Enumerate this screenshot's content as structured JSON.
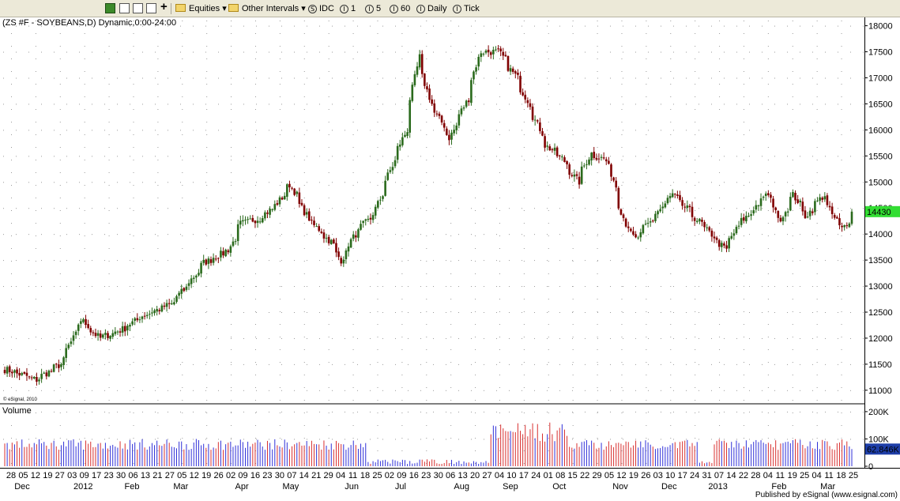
{
  "toolbar": {
    "equities_label": "Equities",
    "other_intervals_label": "Other Intervals",
    "idc_label": "IDC",
    "interval_1": "1",
    "interval_5": "5",
    "interval_60": "60",
    "daily_label": "Daily",
    "tick_label": "Tick",
    "icons": [
      "chart-grid-icon",
      "chart-list-icon",
      "page-icon",
      "copy-icon",
      "plus-icon"
    ]
  },
  "chart_title": "(ZS #F - SOYBEANS,D) Dynamic,0:00-24:00",
  "watermark": "© eSignal, 2010",
  "published": "Published by eSignal (www.esignal.com)",
  "volume_label": "Volume",
  "colors": {
    "up": "#2a6a1c",
    "down": "#800000",
    "vol_up": "#3030d8",
    "vol_down": "#d83030",
    "last_price_bg": "#33dd33",
    "last_volume_bg": "#1e3ea8",
    "grid_dot": "#9a9a9a",
    "volume_title": "#1a1acc"
  },
  "chart_data": {
    "type": "candlestick",
    "price_axis": {
      "range": [
        1080,
        1810
      ],
      "ticks": [
        1100,
        1150,
        1200,
        1250,
        1300,
        1350,
        1400,
        1450,
        1500,
        1550,
        1600,
        1650,
        1700,
        1750,
        1800
      ],
      "tick_labels": [
        "11000",
        "11500",
        "12000",
        "12500",
        "13000",
        "13500",
        "14000",
        "14500",
        "15000",
        "15500",
        "16000",
        "16500",
        "17000",
        "17500",
        "18000"
      ]
    },
    "last_price_label": "14430",
    "last_price": 1443,
    "volume_axis": {
      "range": [
        0,
        220000
      ],
      "ticks": [
        0,
        100000,
        200000
      ],
      "tick_labels": [
        "0",
        "100K",
        "200K"
      ]
    },
    "last_volume_label": "62.846K",
    "last_volume": 62846,
    "x_day_labels": [
      "28",
      "05",
      "12",
      "19",
      "27",
      "03",
      "09",
      "17",
      "23",
      "30",
      "06",
      "13",
      "21",
      "27",
      "05",
      "12",
      "19",
      "26",
      "02",
      "09",
      "16",
      "23",
      "30",
      "07",
      "14",
      "21",
      "29",
      "04",
      "11",
      "18",
      "25",
      "02",
      "09",
      "16",
      "23",
      "30",
      "06",
      "13",
      "20",
      "27",
      "04",
      "10",
      "17",
      "24",
      "01",
      "08",
      "15",
      "22",
      "29",
      "05",
      "12",
      "19",
      "26",
      "03",
      "10",
      "17",
      "24",
      "31",
      "07",
      "14",
      "22",
      "28",
      "04",
      "11",
      "19",
      "25",
      "04",
      "11",
      "18",
      "25"
    ],
    "x_month_labels": [
      "Dec",
      "2012",
      "Feb",
      "Mar",
      "Apr",
      "May",
      "Jun",
      "Jul",
      "Aug",
      "Sep",
      "Oct",
      "Nov",
      "Dec",
      "2013",
      "Feb",
      "Mar"
    ],
    "anchors_month_close": [
      [
        "2011-11-28",
        1140
      ],
      [
        "2011-12-15",
        1120
      ],
      [
        "2011-12-29",
        1150
      ],
      [
        "2012-01-10",
        1235
      ],
      [
        "2012-01-20",
        1200
      ],
      [
        "2012-02-01",
        1215
      ],
      [
        "2012-02-15",
        1245
      ],
      [
        "2012-03-01",
        1265
      ],
      [
        "2012-03-10",
        1300
      ],
      [
        "2012-03-20",
        1345
      ],
      [
        "2012-04-03",
        1370
      ],
      [
        "2012-04-10",
        1420
      ],
      [
        "2012-04-20",
        1430
      ],
      [
        "2012-04-30",
        1455
      ],
      [
        "2012-05-08",
        1495
      ],
      [
        "2012-05-18",
        1430
      ],
      [
        "2012-05-31",
        1385
      ],
      [
        "2012-06-06",
        1350
      ],
      [
        "2012-06-14",
        1400
      ],
      [
        "2012-06-25",
        1440
      ],
      [
        "2012-07-06",
        1540
      ],
      [
        "2012-07-13",
        1600
      ],
      [
        "2012-07-20",
        1740
      ],
      [
        "2012-07-27",
        1650
      ],
      [
        "2012-08-07",
        1585
      ],
      [
        "2012-08-17",
        1660
      ],
      [
        "2012-08-24",
        1750
      ],
      [
        "2012-09-04",
        1750
      ],
      [
        "2012-09-14",
        1700
      ],
      [
        "2012-09-21",
        1650
      ],
      [
        "2012-10-01",
        1570
      ],
      [
        "2012-10-10",
        1545
      ],
      [
        "2012-10-19",
        1500
      ],
      [
        "2012-10-26",
        1555
      ],
      [
        "2012-11-05",
        1540
      ],
      [
        "2012-11-15",
        1420
      ],
      [
        "2012-11-21",
        1390
      ],
      [
        "2012-12-03",
        1440
      ],
      [
        "2012-12-12",
        1475
      ],
      [
        "2012-12-21",
        1445
      ],
      [
        "2012-12-31",
        1410
      ],
      [
        "2013-01-11",
        1370
      ],
      [
        "2013-01-18",
        1415
      ],
      [
        "2013-01-28",
        1450
      ],
      [
        "2013-02-04",
        1480
      ],
      [
        "2013-02-11",
        1425
      ],
      [
        "2013-02-19",
        1475
      ],
      [
        "2013-02-26",
        1435
      ],
      [
        "2013-03-08",
        1475
      ],
      [
        "2013-03-14",
        1430
      ],
      [
        "2013-03-19",
        1410
      ],
      [
        "2013-03-25",
        1443
      ]
    ]
  }
}
